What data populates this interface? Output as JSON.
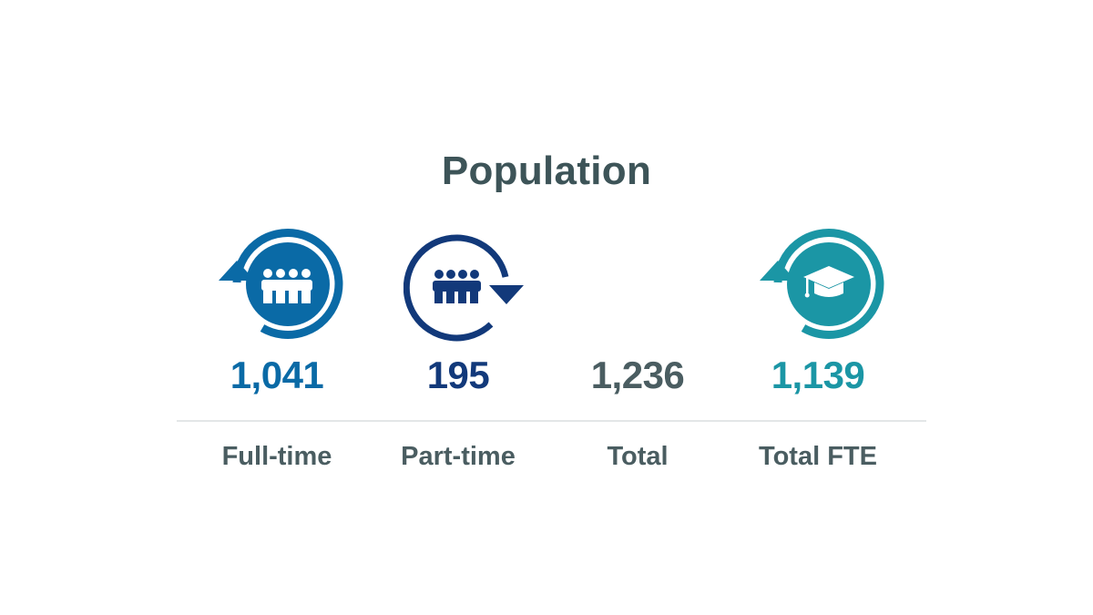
{
  "title": "Population",
  "colors": {
    "full_time": "#0a6aa6",
    "part_time": "#12397a",
    "total": "#4a5d61",
    "total_fte": "#1b96a5",
    "title": "#3d5458"
  },
  "stats": [
    {
      "value": "1,041",
      "label": "Full-time",
      "icon": "full-time-people-icon"
    },
    {
      "value": "195",
      "label": "Part-time",
      "icon": "part-time-people-icon"
    },
    {
      "value": "1,236",
      "label": "Total",
      "icon": ""
    },
    {
      "value": "1,139",
      "label": "Total FTE",
      "icon": "graduation-cap-icon"
    }
  ]
}
